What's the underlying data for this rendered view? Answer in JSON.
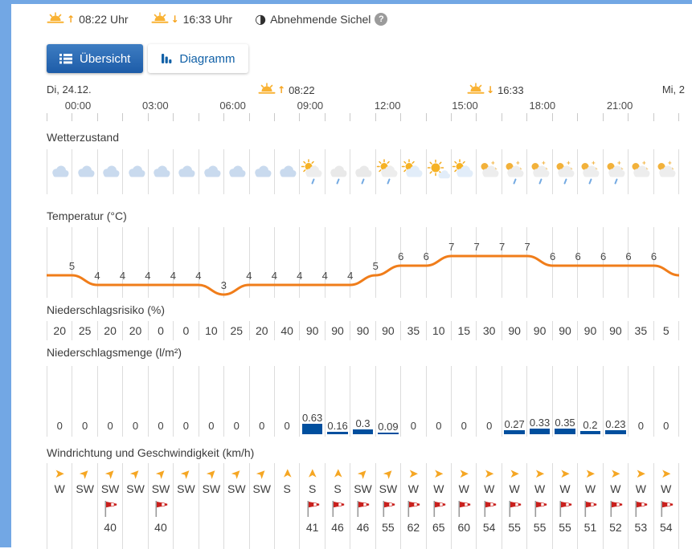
{
  "topbar": {
    "sunrise_time": "08:22 Uhr",
    "sunset_time": "16:33 Uhr",
    "moon_phase": "Abnehmende Sichel",
    "help_glyph": "?"
  },
  "tabs": {
    "overview_label": "Übersicht",
    "diagram_label": "Diagramm"
  },
  "timeline": {
    "day_left": "Di, 24.12.",
    "day_right": "Mi, 2",
    "sunrise_time": "08:22",
    "sunset_time": "16:33",
    "hours": [
      "00:00",
      "03:00",
      "06:00",
      "09:00",
      "12:00",
      "15:00",
      "18:00",
      "21:00"
    ]
  },
  "sections": {
    "condition_label": "Wetterzustand",
    "temperature_label": "Temperatur (°C)",
    "risk_label": "Niederschlagsrisiko (%)",
    "amount_label": "Niederschlagsmenge (l/m²)",
    "wind_label": "Windrichtung und Geschwindigkeit (km/h)"
  },
  "columns": {
    "icons": [
      "cloudy",
      "cloudy",
      "cloudy",
      "cloudy",
      "cloudy",
      "cloudy",
      "cloudy",
      "cloudy",
      "cloudy",
      "cloudy",
      "sun-cloud-rain",
      "cloud-rain",
      "cloud-rain",
      "sun-cloud-rain",
      "sun-cloud",
      "mostly-sunny",
      "sun-cloud",
      "moon-cloud",
      "moon-cloud-rain",
      "moon-cloud-rain",
      "moon-cloud-rain",
      "moon-cloud-rain",
      "moon-cloud-rain",
      "moon-cloud",
      "moon-cloud"
    ],
    "temperature_points": [
      5,
      5,
      4,
      4,
      4,
      4,
      4,
      3,
      4,
      4,
      4,
      4,
      4,
      5,
      6,
      6,
      7,
      7,
      7,
      7,
      6,
      6,
      6,
      6,
      6,
      5
    ],
    "temperature_labels": [
      "5",
      "4",
      "4",
      "4",
      "4",
      "4",
      "3",
      "4",
      "4",
      "4",
      "4",
      "4",
      "5",
      "6",
      "6",
      "7",
      "7",
      "7",
      "7",
      "6",
      "6",
      "6",
      "6",
      "6"
    ],
    "risk": [
      "20",
      "25",
      "20",
      "20",
      "0",
      "0",
      "10",
      "25",
      "20",
      "40",
      "90",
      "90",
      "90",
      "90",
      "35",
      "10",
      "15",
      "30",
      "90",
      "90",
      "90",
      "90",
      "90",
      "35",
      "5"
    ],
    "amount": [
      0,
      0,
      0,
      0,
      0,
      0,
      0,
      0,
      0,
      0,
      0.63,
      0.16,
      0.3,
      0.09,
      0,
      0,
      0,
      0,
      0.27,
      0.33,
      0.35,
      0.2,
      0.23,
      0,
      0
    ],
    "amount_labels": [
      "0",
      "0",
      "0",
      "0",
      "0",
      "0",
      "0",
      "0",
      "0",
      "0",
      "0.63",
      "0.16",
      "0.3",
      "0.09",
      "0",
      "0",
      "0",
      "0",
      "0.27",
      "0.33",
      "0.35",
      "0.2",
      "0.23",
      "0",
      "0"
    ],
    "wind_dir": [
      "W",
      "SW",
      "SW",
      "SW",
      "SW",
      "SW",
      "SW",
      "SW",
      "SW",
      "S",
      "S",
      "S",
      "SW",
      "SW",
      "W",
      "W",
      "W",
      "W",
      "W",
      "W",
      "W",
      "W",
      "W",
      "W",
      "W"
    ],
    "wind_speed": [
      null,
      null,
      "40",
      null,
      "40",
      null,
      null,
      null,
      null,
      null,
      "41",
      "46",
      "46",
      "55",
      "62",
      "65",
      "60",
      "54",
      "55",
      "55",
      "55",
      "51",
      "52",
      "53",
      "54"
    ]
  },
  "icons": {
    "arrow_glyph": "➤",
    "moon_glyph": "◑",
    "sun_up_glyph": "↑",
    "sun_down_glyph": "↓"
  },
  "colors": {
    "frame_blue": "#72a7e4",
    "accent_blue": "#1d5ca8",
    "temp_line": "#f07d1a",
    "bar_blue": "#004f9e",
    "arrow_orange": "#f5a623",
    "windsock_red": "#c9201d"
  }
}
